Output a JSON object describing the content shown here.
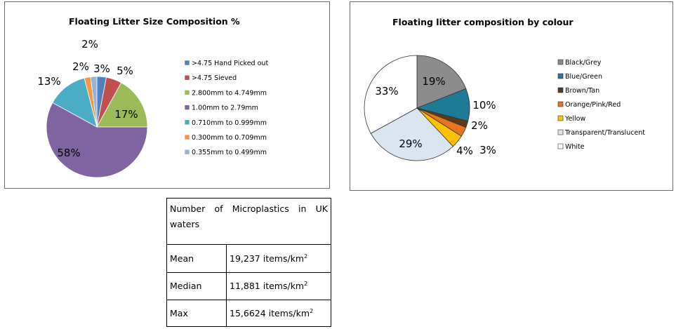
{
  "chart_data": [
    {
      "type": "pie",
      "title": "Floating Litter  Size Composition %",
      "series": [
        {
          "label": ">4.75 Hand Picked out",
          "value": 3,
          "color": "#4f81bd",
          "pct_label": "3%"
        },
        {
          "label": ">4.75 Sieved",
          "value": 5,
          "color": "#c0504d",
          "pct_label": "5%"
        },
        {
          "label": "2.800mm to 4.749mm",
          "value": 17,
          "color": "#9bbb59",
          "pct_label": "17%"
        },
        {
          "label": "1.00mm to 2.79mm",
          "value": 58,
          "color": "#8064a2",
          "pct_label": "58%"
        },
        {
          "label": "0.710mm to 0.999mm",
          "value": 13,
          "color": "#4bacc6",
          "pct_label": "13%"
        },
        {
          "label": "0.300mm to 0.709mm",
          "value": 2,
          "color": "#f79646",
          "pct_label": "2%"
        },
        {
          "label": "0.355mm to 0.499mm",
          "value": 2,
          "color": "#95b3d7",
          "pct_label": "2%"
        }
      ],
      "legend_position": "right"
    },
    {
      "type": "pie",
      "title": "Floating litter composition by colour",
      "series": [
        {
          "label": "Black/Grey",
          "value": 19,
          "color": "#8c8c8c",
          "pct_label": "19%"
        },
        {
          "label": "Blue/Green",
          "value": 10,
          "color": "#1f7a96",
          "pct_label": "10%"
        },
        {
          "label": "Brown/Tan",
          "value": 2,
          "color": "#5a3a1a",
          "pct_label": "2%"
        },
        {
          "label": "Orange/Pink/Red",
          "value": 3,
          "color": "#e8741e",
          "pct_label": "3%"
        },
        {
          "label": "Yellow",
          "value": 4,
          "color": "#ffc000",
          "pct_label": "4%"
        },
        {
          "label": "Transparent/Translucent",
          "value": 29,
          "color": "#dbe5f1",
          "pct_label": "29%"
        },
        {
          "label": "White",
          "value": 33,
          "color": "#ffffff",
          "pct_label": "33%"
        }
      ],
      "legend_position": "right"
    }
  ],
  "table": {
    "header_words": [
      "Number",
      "of",
      "Microplastics",
      "in",
      "UK"
    ],
    "header_line2": "waters",
    "unit_prefix": " items/km",
    "unit_sup": "2",
    "rows": [
      {
        "label": "Mean",
        "value": "19,237"
      },
      {
        "label": "Median",
        "value": "11,881"
      },
      {
        "label": "Max",
        "value": "15,6624"
      }
    ]
  }
}
